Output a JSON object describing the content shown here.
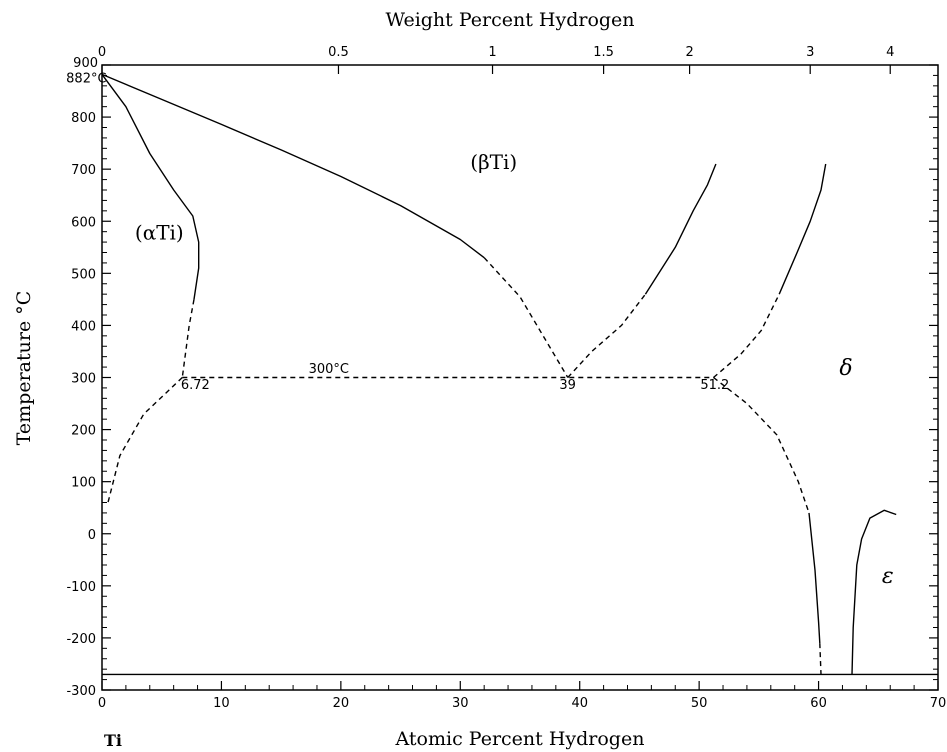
{
  "chart_data": {
    "type": "line",
    "title": "",
    "xlabel": "Atomic Percent Hydrogen",
    "x2label": "Weight Percent Hydrogen",
    "ylabel": "Temperature °C",
    "xlim": [
      0,
      70
    ],
    "ylim": [
      -300,
      900
    ],
    "x_ticks": [
      0,
      10,
      20,
      30,
      40,
      50,
      60,
      70
    ],
    "y_ticks": [
      -300,
      -200,
      -100,
      0,
      100,
      200,
      300,
      400,
      500,
      600,
      700,
      800,
      900
    ],
    "top_ticks": [
      {
        "label": "0",
        "at_atomic": 0
      },
      {
        "label": "0.5",
        "at_atomic": 19.8
      },
      {
        "label": "1",
        "at_atomic": 32.7
      },
      {
        "label": "1.5",
        "at_atomic": 42.0
      },
      {
        "label": "2",
        "at_atomic": 49.2
      },
      {
        "label": "3",
        "at_atomic": 59.3
      },
      {
        "label": "4",
        "at_atomic": 66.0
      }
    ],
    "grid": false,
    "corner_label": "Ti",
    "phase_labels": [
      {
        "text": "(αTi)",
        "x": 4.8,
        "y": 565
      },
      {
        "text": "(βTi)",
        "x": 32.8,
        "y": 700
      },
      {
        "text": "δ",
        "x": 62.3,
        "y": 305,
        "italic": true
      },
      {
        "text": "ε",
        "x": 65.8,
        "y": -95,
        "italic": true
      }
    ],
    "annotations": [
      {
        "text": "882°C",
        "x": -3.0,
        "y": 866
      },
      {
        "text": "300°C",
        "x": 17.3,
        "y": 309
      },
      {
        "text": "6.72",
        "x": 6.6,
        "y": 278
      },
      {
        "text": "39",
        "x": 38.3,
        "y": 278
      },
      {
        "text": "51.2",
        "x": 50.1,
        "y": 278
      }
    ],
    "series": [
      {
        "style": "solid",
        "points": [
          [
            0,
            882
          ],
          [
            2,
            820
          ],
          [
            4,
            730
          ],
          [
            6,
            660
          ],
          [
            7.6,
            610
          ],
          [
            8.1,
            560
          ],
          [
            8.1,
            510
          ],
          [
            7.7,
            450
          ]
        ]
      },
      {
        "style": "dashed",
        "points": [
          [
            7.7,
            450
          ],
          [
            7.3,
            400
          ],
          [
            6.72,
            300
          ]
        ]
      },
      {
        "style": "solid",
        "points": [
          [
            0,
            882
          ],
          [
            5,
            834
          ],
          [
            10,
            786
          ],
          [
            15,
            737
          ],
          [
            20,
            686
          ],
          [
            25,
            630
          ],
          [
            30,
            565
          ],
          [
            32,
            530
          ]
        ]
      },
      {
        "style": "dashed",
        "points": [
          [
            32,
            530
          ],
          [
            35,
            455
          ],
          [
            39,
            300
          ]
        ]
      },
      {
        "style": "dashed",
        "points": [
          [
            39,
            300
          ],
          [
            41,
            350
          ],
          [
            43.5,
            400
          ],
          [
            45.5,
            460
          ]
        ]
      },
      {
        "style": "solid",
        "points": [
          [
            45.5,
            460
          ],
          [
            48,
            550
          ],
          [
            49.5,
            620
          ],
          [
            50.7,
            670
          ],
          [
            51.4,
            710
          ]
        ]
      },
      {
        "style": "dashed",
        "points": [
          [
            51.2,
            300
          ],
          [
            53.5,
            345
          ],
          [
            55.2,
            390
          ],
          [
            56.7,
            460
          ]
        ]
      },
      {
        "style": "solid",
        "points": [
          [
            56.7,
            460
          ],
          [
            58.2,
            540
          ],
          [
            59.3,
            600
          ],
          [
            60.2,
            660
          ],
          [
            60.6,
            710
          ]
        ]
      },
      {
        "style": "dashed",
        "points": [
          [
            6.72,
            300
          ],
          [
            39,
            300
          ],
          [
            51.2,
            300
          ]
        ]
      },
      {
        "style": "dashed",
        "points": [
          [
            6.72,
            300
          ],
          [
            3.5,
            230
          ],
          [
            1.5,
            150
          ],
          [
            0.5,
            60
          ]
        ]
      },
      {
        "style": "dashed",
        "points": [
          [
            51.2,
            300
          ],
          [
            54,
            250
          ],
          [
            56.5,
            190
          ],
          [
            58.3,
            100
          ],
          [
            59.2,
            40
          ]
        ]
      },
      {
        "style": "solid",
        "points": [
          [
            59.2,
            40
          ],
          [
            59.7,
            -70
          ],
          [
            60,
            -170
          ],
          [
            60.1,
            -210
          ]
        ]
      },
      {
        "style": "dashed",
        "points": [
          [
            60.1,
            -210
          ],
          [
            60.2,
            -270
          ]
        ]
      },
      {
        "style": "solid",
        "points": [
          [
            62.8,
            -270
          ],
          [
            62.9,
            -180
          ],
          [
            63.2,
            -60
          ],
          [
            63.6,
            -10
          ],
          [
            64.3,
            30
          ],
          [
            65.5,
            45
          ],
          [
            66.5,
            37
          ]
        ]
      },
      {
        "style": "solid",
        "points": [
          [
            0,
            -270
          ],
          [
            70,
            -270
          ]
        ]
      }
    ]
  }
}
